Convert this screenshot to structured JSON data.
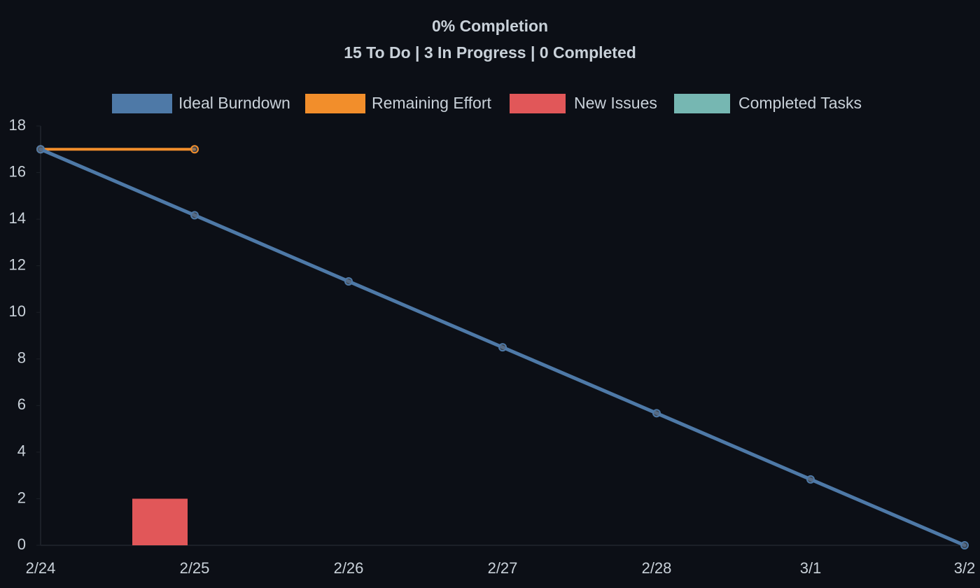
{
  "chart_data": {
    "type": "burndown",
    "title": "0% Completion",
    "subtitle": "15 To Do | 3 In Progress | 0 Completed",
    "categories": [
      "2/24",
      "2/25",
      "2/26",
      "2/27",
      "2/28",
      "3/1",
      "3/2"
    ],
    "series": [
      {
        "name": "Ideal Burndown",
        "kind": "line",
        "color": "#4e79a7",
        "values": [
          17,
          14.17,
          11.33,
          8.5,
          5.67,
          2.83,
          0
        ]
      },
      {
        "name": "Remaining Effort",
        "kind": "line",
        "color": "#f28e2b",
        "values": [
          17,
          17,
          null,
          null,
          null,
          null,
          null
        ]
      },
      {
        "name": "New Issues",
        "kind": "bar",
        "color": "#e15759",
        "values": [
          null,
          2,
          null,
          null,
          null,
          null,
          null
        ]
      },
      {
        "name": "Completed Tasks",
        "kind": "bar",
        "color": "#76b7b2",
        "values": [
          null,
          null,
          null,
          null,
          null,
          null,
          null
        ]
      }
    ],
    "ylim": [
      0,
      18
    ],
    "yticks": [
      0,
      2,
      4,
      6,
      8,
      10,
      12,
      14,
      16,
      18
    ],
    "grid": false,
    "legend": "top"
  }
}
